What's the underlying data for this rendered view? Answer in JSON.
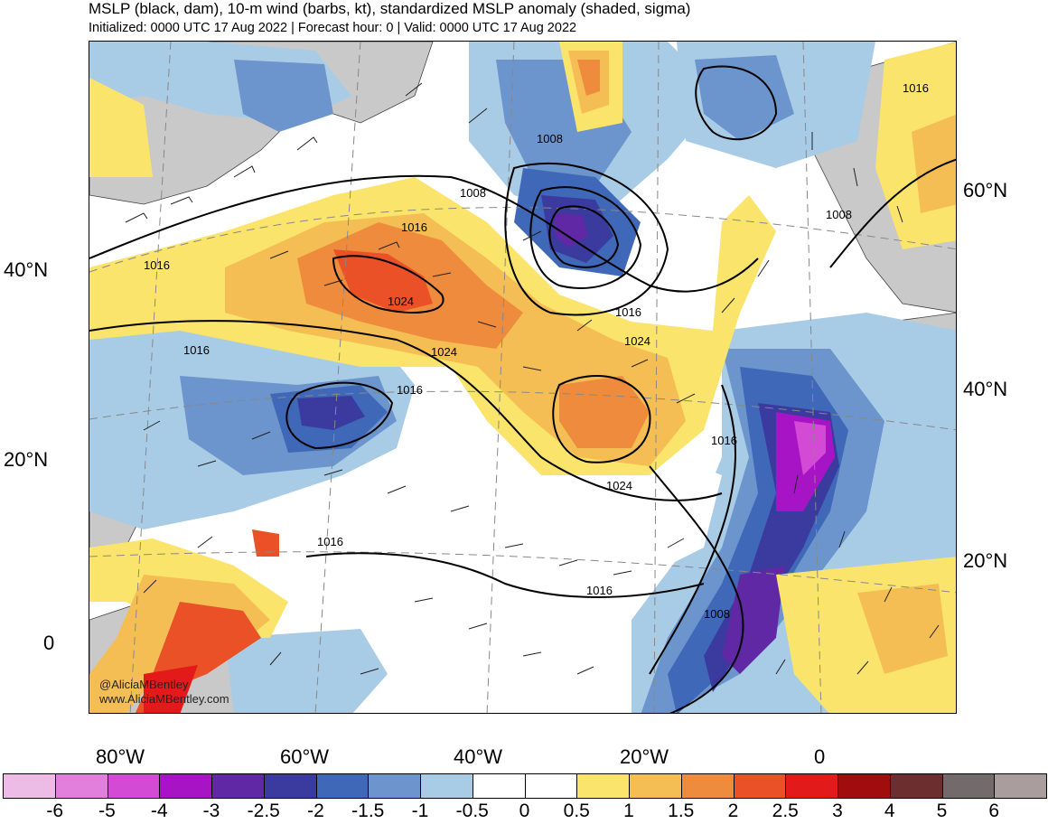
{
  "title": "MSLP (black, dam), 10-m wind (barbs, kt), standardized MSLP anomaly (shaded, sigma)",
  "subtitle": "Initialized: 0000 UTC 17 Aug 2022 | Forecast hour: 0 | Valid: 0000 UTC 17 Aug 2022",
  "watermark": {
    "handle": "@AliciaMBentley",
    "url": "www.AliciaMBentley.com"
  },
  "axes": {
    "left_lat_labels": [
      "40°N",
      "20°N",
      "0"
    ],
    "right_lat_labels": [
      "60°N",
      "40°N",
      "20°N"
    ],
    "lon_labels": [
      "80°W",
      "60°W",
      "40°W",
      "20°W",
      "0"
    ]
  },
  "contour_labels": [
    "1008",
    "1016",
    "1008",
    "1016",
    "1024",
    "1024",
    "1016",
    "1016",
    "1024",
    "1024",
    "1016",
    "1016",
    "1016",
    "1008",
    "1008",
    "1016",
    "1016"
  ],
  "colorbar": {
    "ticks": [
      "-6",
      "-5",
      "-4",
      "-3",
      "-2.5",
      "-2",
      "-1.5",
      "-1",
      "-0.5",
      "0",
      "0.5",
      "1",
      "1.5",
      "2",
      "2.5",
      "3",
      "4",
      "5",
      "6"
    ],
    "colors": [
      "#ecbbe6",
      "#e27fdd",
      "#d34bd4",
      "#a714c5",
      "#6128a6",
      "#3b3b9f",
      "#3f69b8",
      "#6b95cc",
      "#a8cbe6",
      "#ffffff",
      "#ffffff",
      "#fbe46c",
      "#f4be55",
      "#ef8b3c",
      "#ea5127",
      "#e21a1a",
      "#a10d0d",
      "#6c2e2e",
      "#736b6b",
      "#a99d9d"
    ]
  }
}
